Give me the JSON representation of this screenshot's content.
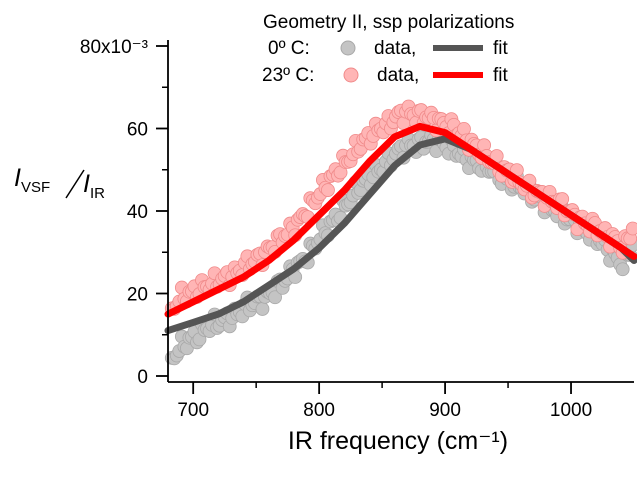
{
  "chart_data": {
    "type": "scatter",
    "title": "Geometry II, ssp polarizations",
    "xlabel": "IR frequency (cm⁻¹)",
    "ylabel": "I_VSF / I_IR",
    "y_exponent_label": "x10⁻³",
    "xlim": [
      680,
      1050
    ],
    "ylim": [
      0,
      80
    ],
    "x_ticks": [
      700,
      800,
      900,
      1000
    ],
    "y_ticks": [
      0,
      20,
      40,
      60,
      80
    ],
    "y_tick_labels": [
      "0",
      "20",
      "40",
      "60",
      "80x10⁻³"
    ],
    "legend": {
      "placement": "top-right",
      "rows": [
        {
          "label": "0º C:",
          "data_label": "data,",
          "fit_label": "fit",
          "marker_color": "#c4c4c4",
          "marker_edge": "#a8a8a8",
          "line_color": "#555555"
        },
        {
          "label": "23º C:",
          "data_label": "data,",
          "fit_label": "fit",
          "marker_color": "#ffb5b5",
          "marker_edge": "#f08a8a",
          "line_color": "#ff0000"
        }
      ]
    },
    "series": [
      {
        "name": "0º C data",
        "kind": "points",
        "color": "#c4c4c4",
        "edge": "#a8a8a8",
        "x": [
          683,
          690,
          698,
          705,
          712,
          720,
          728,
          735,
          742,
          750,
          758,
          765,
          772,
          780,
          788,
          795,
          802,
          810,
          818,
          825,
          832,
          840,
          848,
          855,
          862,
          870,
          878,
          885,
          892,
          900,
          908,
          915,
          922,
          930,
          938,
          945,
          952,
          960,
          968,
          975,
          982,
          990,
          998,
          1005,
          1012,
          1020,
          1028,
          1035,
          1042,
          1049
        ],
        "y": [
          4,
          7,
          9,
          10,
          12,
          13,
          14,
          15,
          17,
          18,
          19,
          21,
          23,
          26,
          28,
          31,
          34,
          37,
          40,
          43,
          46,
          48,
          50,
          52,
          54,
          56,
          56,
          57,
          57,
          56,
          55,
          53,
          52,
          51,
          50,
          48,
          47,
          46,
          44,
          43,
          41,
          40,
          38,
          37,
          35,
          34,
          31,
          29,
          27,
          32
        ]
      },
      {
        "name": "23º C data",
        "kind": "points",
        "color": "#ffb5b5",
        "edge": "#f08a8a",
        "x": [
          683,
          690,
          698,
          705,
          712,
          720,
          728,
          735,
          742,
          750,
          758,
          765,
          772,
          780,
          788,
          795,
          802,
          810,
          818,
          825,
          832,
          840,
          848,
          855,
          862,
          870,
          878,
          885,
          892,
          900,
          908,
          915,
          922,
          930,
          938,
          945,
          952,
          960,
          968,
          975,
          982,
          990,
          998,
          1005,
          1012,
          1020,
          1028,
          1035,
          1042,
          1049
        ],
        "y": [
          16,
          19,
          20,
          21,
          22,
          23,
          24,
          25,
          27,
          28,
          30,
          32,
          34,
          36,
          39,
          42,
          45,
          48,
          51,
          53,
          56,
          58,
          60,
          61,
          63,
          64,
          63,
          63,
          62,
          61,
          60,
          58,
          56,
          54,
          52,
          50,
          49,
          47,
          45,
          44,
          43,
          42,
          40,
          38,
          37,
          36,
          34,
          33,
          31,
          36
        ]
      },
      {
        "name": "0º C fit",
        "kind": "line",
        "color": "#555555",
        "x": [
          680,
          700,
          720,
          740,
          760,
          780,
          800,
          820,
          840,
          860,
          880,
          900,
          920,
          940,
          960,
          980,
          1000,
          1020,
          1040,
          1050
        ],
        "y": [
          11,
          13,
          15,
          18,
          22,
          26,
          31,
          37,
          44,
          51,
          56,
          57.5,
          55,
          51,
          47,
          43,
          39,
          35,
          31,
          28
        ]
      },
      {
        "name": "23º C fit",
        "kind": "line",
        "color": "#ff0000",
        "x": [
          680,
          700,
          720,
          740,
          760,
          780,
          800,
          820,
          840,
          860,
          880,
          900,
          920,
          940,
          960,
          980,
          1000,
          1020,
          1040,
          1050
        ],
        "y": [
          15,
          18,
          21,
          24,
          28,
          33,
          39,
          45,
          52,
          58,
          60.5,
          59,
          55,
          51,
          47,
          43,
          39,
          35,
          31,
          29
        ]
      }
    ]
  }
}
